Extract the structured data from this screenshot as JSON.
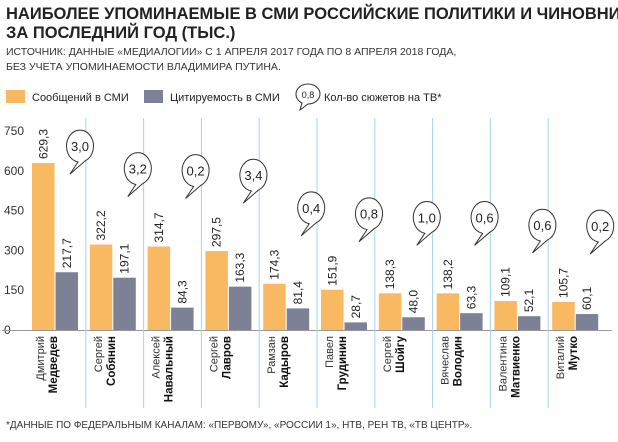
{
  "title_line1": "НАИБОЛЕЕ УПОМИНАЕМЫЕ В СМИ РОССИЙСКИЕ ПОЛИТИКИ И ЧИНОВНИКИ",
  "title_line2": "ЗА ПОСЛЕДНИЙ ГОД (ТЫС.)",
  "subtitle_line1": "ИСТОЧНИК: ДАННЫЕ «МЕДИАЛОГИИ» С 1 АПРЕЛЯ 2017 ГОДА ПО 8 АПРЕЛЯ 2018 ГОДА,",
  "subtitle_line2": "БЕЗ УЧЕТА УПОМИНАЕМОСТИ ВЛАДИМИРА ПУТИНА.",
  "legend": {
    "messages": "Сообщений в СМИ",
    "citations": "Цитируемость в СМИ",
    "tv_sample": "0,8",
    "tv": "Кол-во сюжетов на ТВ*"
  },
  "footnote": "*ДАННЫЕ ПО ФЕДЕРАЛЬНЫМ КАНАЛАМ: «ПЕРВОМУ», «РОССИИ 1», НТВ, РЕН ТВ, «ТВ ЦЕНТР».",
  "colors": {
    "messages": "#F9B962",
    "citations": "#7C8196",
    "divider": "#A7D3EB",
    "grid": "#999999",
    "text": "#222222"
  },
  "chart_data": {
    "type": "bar",
    "ylim": [
      0,
      750
    ],
    "yticks": [
      "0",
      "150",
      "300",
      "450",
      "600",
      "750"
    ],
    "grid": false,
    "categories": [
      {
        "first": "Дмитрий",
        "last": "Медведев"
      },
      {
        "first": "Сергей",
        "last": "Собянин"
      },
      {
        "first": "Алексей",
        "last": "Навальный"
      },
      {
        "first": "Сергей",
        "last": "Лавров"
      },
      {
        "first": "Рамзан",
        "last": "Кадыров"
      },
      {
        "first": "Павел",
        "last": "Грудинин"
      },
      {
        "first": "Сергей",
        "last": "Шойгу"
      },
      {
        "first": "Вячеслав",
        "last": "Володин"
      },
      {
        "first": "Валентина",
        "last": "Матвиенко"
      },
      {
        "first": "Виталий",
        "last": "Мутко"
      }
    ],
    "series": [
      {
        "name": "Сообщений в СМИ",
        "values": [
          629.3,
          322.2,
          314.7,
          297.5,
          174.3,
          151.9,
          138.3,
          138.2,
          109.1,
          105.7
        ],
        "labels": [
          "629,3",
          "322,2",
          "314,7",
          "297,5",
          "174,3",
          "151,9",
          "138,3",
          "138,2",
          "109,1",
          "105,7"
        ]
      },
      {
        "name": "Цитируемость в СМИ",
        "values": [
          217.7,
          197.1,
          84.3,
          163.3,
          81.4,
          28.7,
          48.0,
          63.3,
          52.1,
          60.1
        ],
        "labels": [
          "217,7",
          "197,1",
          "84,3",
          "163,3",
          "81,4",
          "28,7",
          "48,0",
          "63,3",
          "52,1",
          "60,1"
        ]
      }
    ],
    "tv_segments": {
      "name": "Кол-во сюжетов на ТВ*",
      "values": [
        3.0,
        3.2,
        0.2,
        3.4,
        0.4,
        0.8,
        1.0,
        0.6,
        0.6,
        0.2
      ],
      "labels": [
        "3,0",
        "3,2",
        "0,2",
        "3,4",
        "0,4",
        "0,8",
        "1,0",
        "0,6",
        "0,6",
        "0,2"
      ]
    }
  }
}
